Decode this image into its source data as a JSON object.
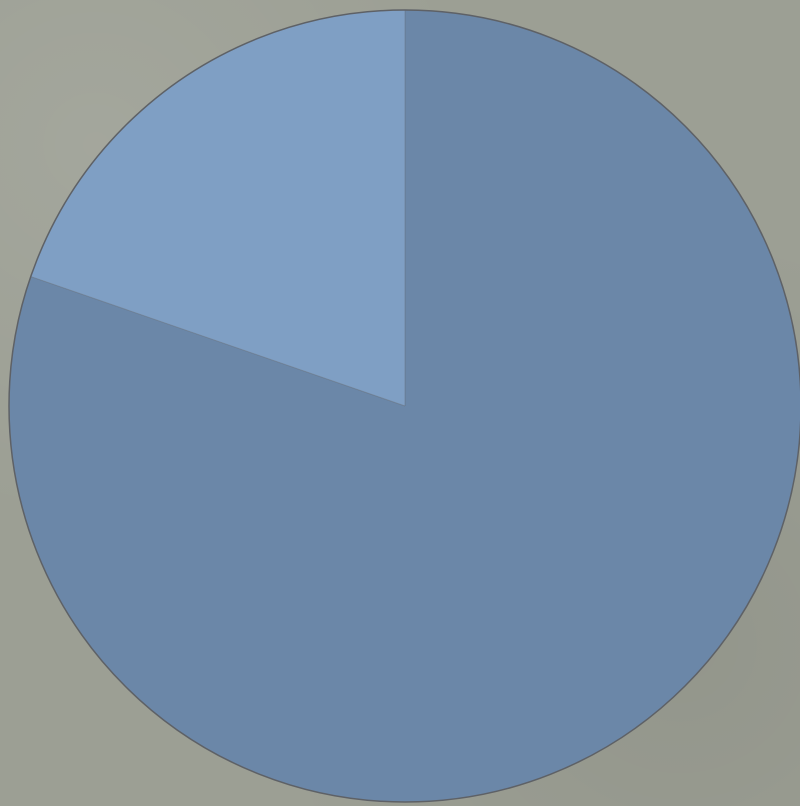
{
  "background_color": "#9c9f94",
  "outline_color": "#5e6166",
  "chart_data": {
    "type": "pie",
    "start_angle_deg": 0,
    "direction": "clockwise",
    "slices": [
      {
        "value": 80.3,
        "color": "#6b87a8"
      },
      {
        "value": 19.7,
        "color": "#7f9fc4"
      }
    ]
  }
}
